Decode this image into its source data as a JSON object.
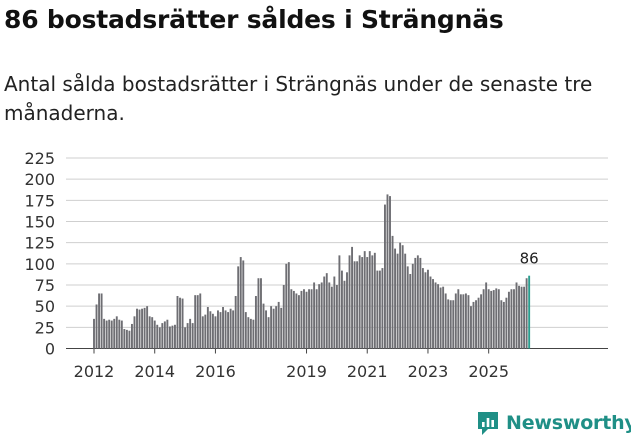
{
  "title": "86 bostadsrätter såldes i Strängnäs",
  "subtitle": "Antal sålda bostadsrätter i Strängnäs under de senaste tre månaderna.",
  "brand": "Newsworthy",
  "colors": {
    "bar": "#6e6e73",
    "highlight": "#2a9d8f",
    "brand": "#1f8f86",
    "grid": "#cfcfcf"
  },
  "chart_data": {
    "type": "bar",
    "title": "86 bostadsrätter såldes i Strängnäs",
    "xlabel": "",
    "ylabel": "",
    "ylim": [
      0,
      225
    ],
    "yticks": [
      0,
      25,
      50,
      75,
      100,
      125,
      150,
      175,
      200,
      225
    ],
    "xticks": [
      "2012",
      "2014",
      "2016",
      "2019",
      "2021",
      "2023",
      "2025"
    ],
    "grid": true,
    "start": "2012-01",
    "x_step": "month",
    "last_value_label": "86",
    "values": [
      35,
      52,
      65,
      65,
      35,
      33,
      34,
      33,
      35,
      38,
      34,
      33,
      23,
      22,
      21,
      29,
      38,
      47,
      46,
      47,
      48,
      50,
      38,
      37,
      33,
      28,
      25,
      30,
      32,
      34,
      26,
      27,
      28,
      62,
      60,
      59,
      25,
      30,
      35,
      30,
      63,
      63,
      65,
      38,
      40,
      49,
      44,
      41,
      38,
      45,
      43,
      49,
      45,
      43,
      47,
      45,
      62,
      97,
      108,
      104,
      43,
      37,
      35,
      34,
      62,
      83,
      83,
      53,
      45,
      37,
      50,
      47,
      50,
      55,
      48,
      75,
      100,
      102,
      70,
      68,
      65,
      63,
      68,
      70,
      67,
      70,
      70,
      78,
      70,
      76,
      78,
      85,
      89,
      78,
      73,
      85,
      75,
      110,
      92,
      80,
      90,
      110,
      120,
      103,
      103,
      110,
      108,
      115,
      108,
      115,
      110,
      113,
      92,
      92,
      95,
      170,
      182,
      180,
      133,
      118,
      112,
      125,
      122,
      112,
      97,
      88,
      100,
      107,
      110,
      107,
      95,
      90,
      93,
      85,
      82,
      78,
      76,
      72,
      73,
      65,
      58,
      57,
      57,
      65,
      70,
      64,
      64,
      65,
      63,
      50,
      55,
      57,
      60,
      64,
      70,
      78,
      70,
      68,
      69,
      71,
      70,
      57,
      55,
      60,
      67,
      70,
      70,
      78,
      74,
      73,
      73,
      83,
      86
    ]
  }
}
